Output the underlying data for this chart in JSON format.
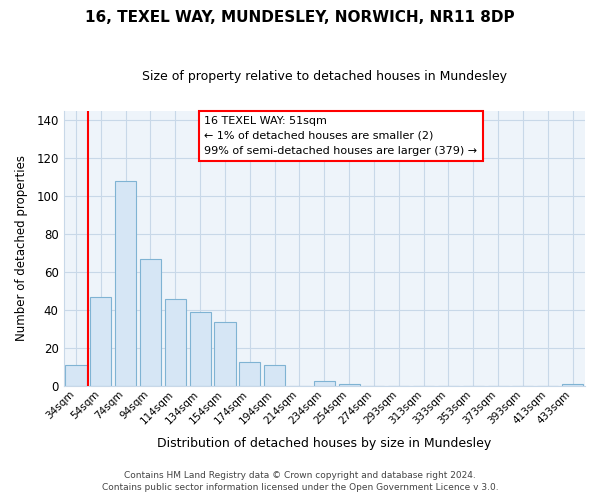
{
  "title": "16, TEXEL WAY, MUNDESLEY, NORWICH, NR11 8DP",
  "subtitle": "Size of property relative to detached houses in Mundesley",
  "xlabel": "Distribution of detached houses by size in Mundesley",
  "ylabel": "Number of detached properties",
  "bar_labels": [
    "34sqm",
    "54sqm",
    "74sqm",
    "94sqm",
    "114sqm",
    "134sqm",
    "154sqm",
    "174sqm",
    "194sqm",
    "214sqm",
    "234sqm",
    "254sqm",
    "274sqm",
    "293sqm",
    "313sqm",
    "333sqm",
    "353sqm",
    "373sqm",
    "393sqm",
    "413sqm",
    "433sqm"
  ],
  "bar_values": [
    11,
    47,
    108,
    67,
    46,
    39,
    34,
    13,
    11,
    0,
    3,
    1,
    0,
    0,
    0,
    0,
    0,
    0,
    0,
    0,
    1
  ],
  "bar_facecolor": "#d6e6f5",
  "bar_edgecolor": "#7fb3d3",
  "red_line_bar_index": 1,
  "annotation_line1": "16 TEXEL WAY: 51sqm",
  "annotation_line2": "← 1% of detached houses are smaller (2)",
  "annotation_line3": "99% of semi-detached houses are larger (379) →",
  "ylim": [
    0,
    145
  ],
  "yticks": [
    0,
    20,
    40,
    60,
    80,
    100,
    120,
    140
  ],
  "footer_line1": "Contains HM Land Registry data © Crown copyright and database right 2024.",
  "footer_line2": "Contains public sector information licensed under the Open Government Licence v 3.0.",
  "background_color": "#ffffff",
  "plot_bg_color": "#eef4fa",
  "grid_color": "#c8d8e8",
  "fig_width": 6.0,
  "fig_height": 5.0
}
